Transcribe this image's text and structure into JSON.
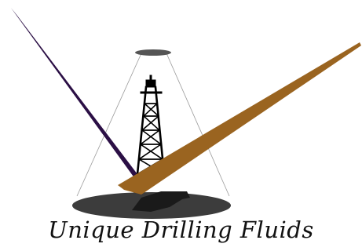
{
  "logo": {
    "company_name": "Unique Drilling Fluids",
    "colors": {
      "purple_beam": "#2b0f45",
      "gold_beam": "#9a6420",
      "shadow": "#1a1a1a",
      "oval": "#3c3c3c",
      "lamp": "#555555",
      "derrick": "#000000",
      "cone": "#9a9a9a",
      "background": "#ffffff"
    }
  }
}
